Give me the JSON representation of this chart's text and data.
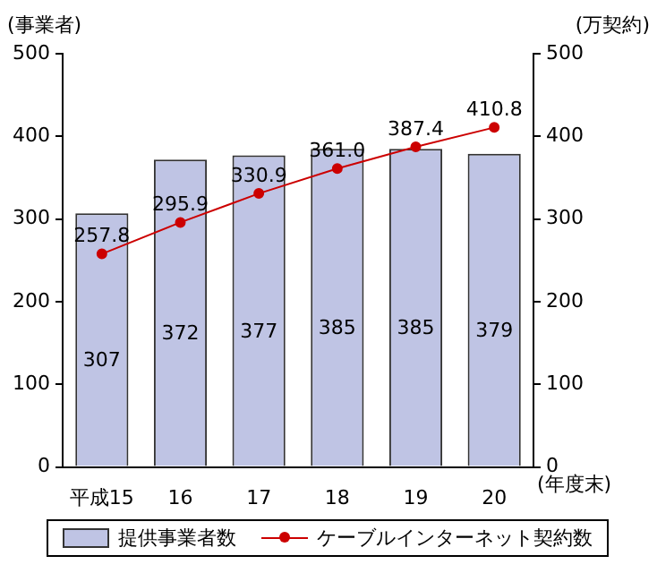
{
  "chart_data": {
    "type": "bar",
    "categories": [
      "平成15",
      "16",
      "17",
      "18",
      "19",
      "20"
    ],
    "xlabel": "(年度末)",
    "ylabel": "(事業者)",
    "y2label": "(万契約)",
    "series": [
      {
        "name": "提供事業者数",
        "color": "#bfc4e4",
        "values": [
          307,
          372,
          377,
          385,
          385,
          379
        ]
      },
      {
        "name": "ケーブルインターネット契約数",
        "type": "line",
        "axis": "y2",
        "color": "#cc0000",
        "values": [
          257.8,
          295.9,
          330.9,
          361.0,
          387.4,
          410.8
        ],
        "value_labels": [
          "257.8",
          "295.9",
          "330.9",
          "361.0",
          "387.4",
          "410.8"
        ]
      }
    ],
    "ylim": [
      0,
      500
    ],
    "yticks": [
      0,
      100,
      200,
      300,
      400,
      500
    ],
    "y2lim": [
      0,
      500
    ],
    "y2ticks": [
      0,
      100,
      200,
      300,
      400,
      500
    ],
    "data_labels": true,
    "legend": "bottom",
    "marker": "circle",
    "line_style": "solid",
    "grid": false
  }
}
